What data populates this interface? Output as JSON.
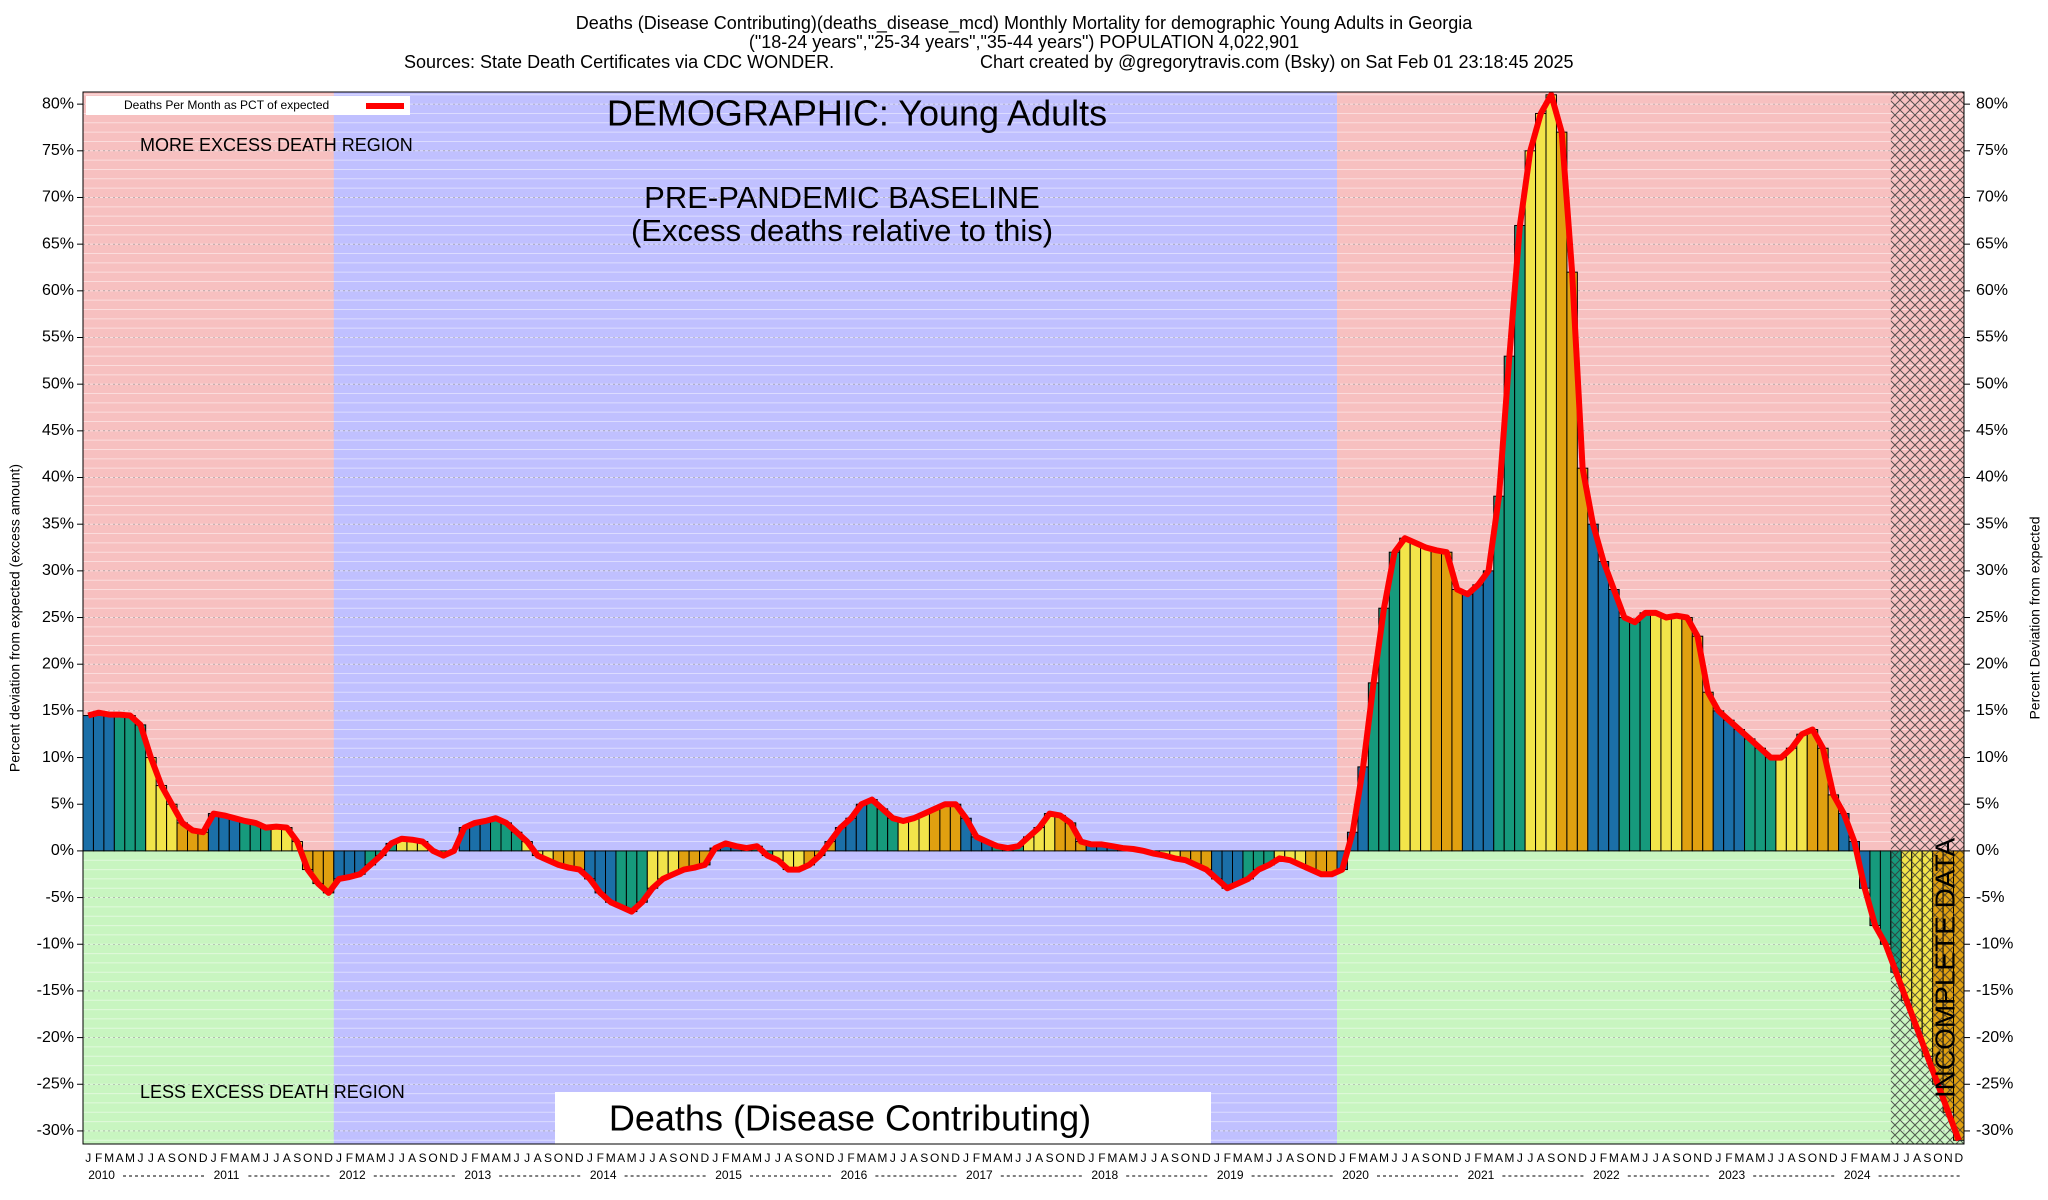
{
  "chart_data": {
    "type": "bar",
    "title": "Deaths (Disease Contributing)(deaths_disease_mcd) Monthly Mortality for demographic Young Adults in Georgia",
    "subtitle": "(\"18-24 years\",\"25-34 years\",\"35-44 years\") POPULATION 4,022,901",
    "source": "Sources: State Death Certificates via CDC WONDER.",
    "credit": "Chart created by @gregorytravis.com (Bsky) on Sat Feb 01 23:18:45 2025",
    "demographic_label": "DEMOGRAPHIC: Young Adults",
    "baseline_label": "PRE-PANDEMIC BASELINE",
    "baseline_note": "(Excess deaths relative to this)",
    "more_label": "MORE EXCESS DEATH REGION",
    "less_label": "LESS EXCESS DEATH REGION",
    "metric_label": "Deaths (Disease Contributing)",
    "incomplete_label": "INCOMPLETE DATA",
    "ylabel": "Percent deviation from expected (excess amount)",
    "y2label": "Percent Deviation from expected",
    "years": [
      "2010",
      "2011",
      "2012",
      "2013",
      "2014",
      "2015",
      "2016",
      "2017",
      "2018",
      "2019",
      "2020",
      "2021",
      "2022",
      "2023",
      "2024"
    ],
    "categories": [
      "J",
      "F",
      "M",
      "A",
      "M",
      "J",
      "J",
      "A",
      "S",
      "O",
      "N",
      "D",
      "J",
      "F",
      "M",
      "A",
      "M",
      "J",
      "J",
      "A",
      "S",
      "O",
      "N",
      "D",
      "J",
      "F",
      "M",
      "A",
      "M",
      "J",
      "J",
      "A",
      "S",
      "O",
      "N",
      "D",
      "J",
      "F",
      "M",
      "A",
      "M",
      "J",
      "J",
      "A",
      "S",
      "O",
      "N",
      "D",
      "J",
      "F",
      "M",
      "A",
      "M",
      "J",
      "J",
      "A",
      "S",
      "O",
      "N",
      "D",
      "J",
      "F",
      "M",
      "A",
      "M",
      "J",
      "J",
      "A",
      "S",
      "O",
      "N",
      "D",
      "J",
      "F",
      "M",
      "A",
      "M",
      "J",
      "J",
      "A",
      "S",
      "O",
      "N",
      "D",
      "J",
      "F",
      "M",
      "A",
      "M",
      "J",
      "J",
      "A",
      "S",
      "O",
      "N",
      "D",
      "J",
      "F",
      "M",
      "A",
      "M",
      "J",
      "J",
      "A",
      "S",
      "O",
      "N",
      "D",
      "J",
      "F",
      "M",
      "A",
      "M",
      "J",
      "J",
      "A",
      "S",
      "O",
      "N",
      "D",
      "J",
      "F",
      "M",
      "A",
      "M",
      "J",
      "J",
      "A",
      "S",
      "O",
      "N",
      "D",
      "J",
      "F",
      "M",
      "A",
      "M",
      "J",
      "J",
      "A",
      "S",
      "O",
      "N",
      "D",
      "J",
      "F",
      "M",
      "A",
      "M",
      "J",
      "J",
      "A",
      "S",
      "O",
      "N",
      "D",
      "J",
      "F",
      "M",
      "A",
      "M",
      "J",
      "J",
      "A",
      "S",
      "O",
      "N",
      "D",
      "J",
      "F",
      "M",
      "A",
      "M",
      "J",
      "J",
      "A",
      "S",
      "O",
      "N",
      "D"
    ],
    "series": [
      {
        "name": "Deaths Per Month as PCT of expected",
        "color": "#ff0000",
        "values": [
          14.5,
          14.8,
          14.6,
          14.6,
          14.5,
          13.5,
          10,
          7,
          5,
          3,
          2.2,
          2,
          4,
          3.8,
          3.5,
          3.2,
          3,
          2.5,
          2.6,
          2.5,
          1,
          -2,
          -3.5,
          -4.5,
          -3,
          -2.8,
          -2.5,
          -1.5,
          -0.5,
          0.8,
          1.3,
          1.2,
          1,
          0,
          -0.5,
          0,
          2.5,
          3,
          3.2,
          3.5,
          3,
          2,
          1,
          -0.5,
          -1,
          -1.5,
          -1.8,
          -2,
          -3,
          -4.5,
          -5.5,
          -6,
          -6.5,
          -5.5,
          -4,
          -3,
          -2.5,
          -2,
          -1.8,
          -1.5,
          0.3,
          0.8,
          0.5,
          0.3,
          0.5,
          -0.5,
          -1,
          -2,
          -2,
          -1.5,
          -0.5,
          1,
          2.5,
          3.5,
          5,
          5.5,
          4.5,
          3.5,
          3.2,
          3.5,
          4,
          4.5,
          5,
          5,
          3.5,
          1.5,
          1,
          0.5,
          0.3,
          0.5,
          1.5,
          2.5,
          4,
          3.8,
          3,
          1,
          0.7,
          0.7,
          0.5,
          0.3,
          0.2,
          0,
          -0.3,
          -0.5,
          -0.8,
          -1,
          -1.5,
          -2,
          -3,
          -4,
          -3.5,
          -3,
          -2,
          -1.5,
          -0.8,
          -1,
          -1.5,
          -2,
          -2.5,
          -2.5,
          -2,
          2,
          9,
          18,
          26,
          32,
          33.5,
          33,
          32.5,
          32.2,
          32,
          28,
          27.5,
          28.5,
          30,
          38,
          53,
          67,
          75,
          79,
          81,
          77,
          62,
          41,
          35,
          31,
          28,
          25,
          24.5,
          25.5,
          25.5,
          25,
          25.2,
          25,
          23,
          17,
          15,
          14,
          13,
          12,
          11,
          10,
          10,
          11,
          12.5,
          13,
          11,
          6,
          4,
          1,
          -4,
          -8,
          -10,
          -13,
          -16,
          -19,
          -22,
          -25,
          -28,
          -31
        ]
      }
    ],
    "bar_colors": [
      "#1b6fa8",
      "#169a7c",
      "#f2e44a",
      "#e0a010"
    ],
    "ylim": [
      -31.4,
      81.3
    ],
    "yticks": [
      {
        "value": -30,
        "label": "-30%"
      },
      {
        "value": -25,
        "label": "-25%"
      },
      {
        "value": -20,
        "label": "-20%"
      },
      {
        "value": -15,
        "label": "-15%"
      },
      {
        "value": -10,
        "label": "-10%"
      },
      {
        "value": -5,
        "label": "-5%"
      },
      {
        "value": 0,
        "label": "0%"
      },
      {
        "value": 5,
        "label": "5%"
      },
      {
        "value": 10,
        "label": "10%"
      },
      {
        "value": 15,
        "label": "15%"
      },
      {
        "value": 20,
        "label": "20%"
      },
      {
        "value": 25,
        "label": "25%"
      },
      {
        "value": 30,
        "label": "30%"
      },
      {
        "value": 35,
        "label": "35%"
      },
      {
        "value": 40,
        "label": "40%"
      },
      {
        "value": 45,
        "label": "45%"
      },
      {
        "value": 50,
        "label": "50%"
      },
      {
        "value": 55,
        "label": "55%"
      },
      {
        "value": 60,
        "label": "60%"
      },
      {
        "value": 65,
        "label": "65%"
      },
      {
        "value": 70,
        "label": "70%"
      },
      {
        "value": 75,
        "label": "75%"
      },
      {
        "value": 80,
        "label": "80%"
      }
    ],
    "grid": true,
    "legend": "upper left"
  }
}
